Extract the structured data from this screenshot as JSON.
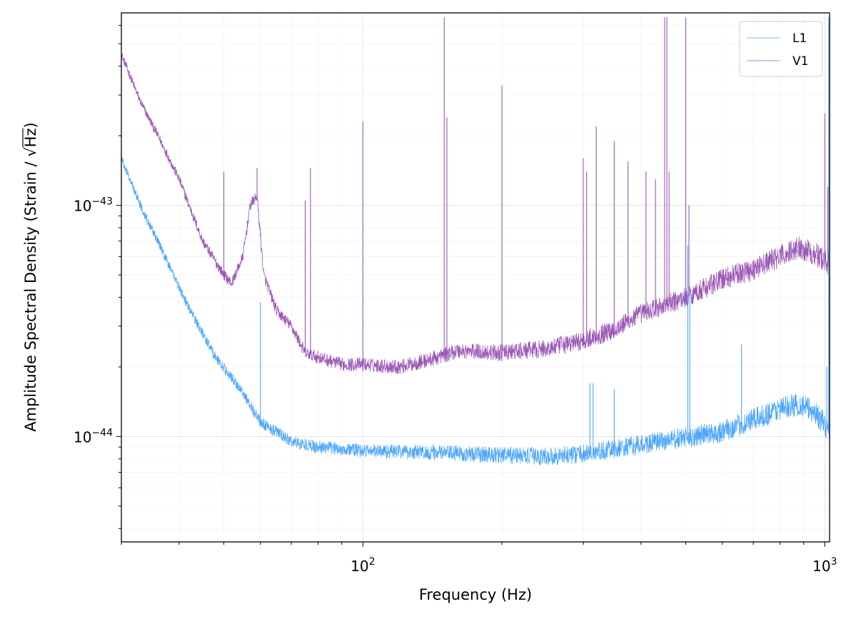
{
  "chart_data": {
    "type": "line",
    "title": "",
    "xlabel": "Frequency (Hz)",
    "ylabel_prefix": "Amplitude Spectral Density (Strain / ",
    "ylabel_radical": "Hz",
    "ylabel_suffix": ")",
    "xscale": "log",
    "yscale": "log",
    "xlim": [
      30,
      1024
    ],
    "ylim": [
      3.5e-45,
      6.8e-43
    ],
    "x_ticks": [
      {
        "value": 100,
        "base": "10",
        "exp": "2"
      },
      {
        "value": 1000,
        "base": "10",
        "exp": "3"
      }
    ],
    "y_ticks": [
      {
        "value": 1e-44,
        "base": "10",
        "exp": "−44"
      },
      {
        "value": 1e-43,
        "base": "10",
        "exp": "−43"
      }
    ],
    "grid": true,
    "legend_position": "top-right",
    "series": [
      {
        "name": "L1",
        "color": "#4da6ff",
        "baseline": [
          [
            30,
            1.6e-43
          ],
          [
            33,
            1e-43
          ],
          [
            37,
            6.2e-44
          ],
          [
            42,
            3.6e-44
          ],
          [
            48,
            2.2e-44
          ],
          [
            55,
            1.55e-44
          ],
          [
            60,
            1.15e-44
          ],
          [
            65,
            1.05e-44
          ],
          [
            70,
            9.5e-45
          ],
          [
            80,
            9e-45
          ],
          [
            100,
            8.7e-45
          ],
          [
            150,
            8.5e-45
          ],
          [
            200,
            8.3e-45
          ],
          [
            250,
            8.2e-45
          ],
          [
            300,
            8.4e-45
          ],
          [
            350,
            8.8e-45
          ],
          [
            400,
            9.2e-45
          ],
          [
            500,
            9.9e-45
          ],
          [
            600,
            1.05e-44
          ],
          [
            700,
            1.18e-44
          ],
          [
            800,
            1.32e-44
          ],
          [
            880,
            1.38e-44
          ],
          [
            950,
            1.28e-44
          ],
          [
            1000,
            1.12e-44
          ],
          [
            1024,
            1.05e-44
          ]
        ],
        "lines": [
          [
            60,
            3.8e-44
          ],
          [
            310,
            1.7e-44
          ],
          [
            315,
            1.7e-44
          ],
          [
            350,
            1.6e-44
          ],
          [
            505,
            6.7e-44
          ],
          [
            510,
            4.2e-44
          ],
          [
            660,
            2.5e-44
          ],
          [
            1010,
            2e-44
          ],
          [
            1020,
            6.5e-43
          ]
        ]
      },
      {
        "name": "V1",
        "color": "#9b59b6",
        "baseline": [
          [
            30,
            4.5e-43
          ],
          [
            33,
            2.8e-43
          ],
          [
            36,
            2e-43
          ],
          [
            40,
            1.3e-43
          ],
          [
            45,
            7e-44
          ],
          [
            50,
            5e-44
          ],
          [
            52,
            4.6e-44
          ],
          [
            55,
            6e-44
          ],
          [
            57,
            1e-43
          ],
          [
            59,
            1.1e-43
          ],
          [
            61,
            5e-44
          ],
          [
            65,
            3.5e-44
          ],
          [
            70,
            3e-44
          ],
          [
            75,
            2.3e-44
          ],
          [
            80,
            2.2e-44
          ],
          [
            90,
            2.05e-44
          ],
          [
            100,
            2.05e-44
          ],
          [
            120,
            2e-44
          ],
          [
            140,
            2.15e-44
          ],
          [
            160,
            2.35e-44
          ],
          [
            200,
            2.3e-44
          ],
          [
            250,
            2.4e-44
          ],
          [
            300,
            2.6e-44
          ],
          [
            350,
            2.9e-44
          ],
          [
            400,
            3.4e-44
          ],
          [
            450,
            3.7e-44
          ],
          [
            500,
            4e-44
          ],
          [
            550,
            4.4e-44
          ],
          [
            600,
            4.8e-44
          ],
          [
            700,
            5.3e-44
          ],
          [
            800,
            6e-44
          ],
          [
            880,
            6.6e-44
          ],
          [
            950,
            6.2e-44
          ],
          [
            1024,
            5.6e-44
          ]
        ],
        "lines": [
          [
            50,
            1.4e-43
          ],
          [
            59,
            1.45e-43
          ],
          [
            75,
            1.05e-43
          ],
          [
            77,
            1.45e-43
          ],
          [
            100,
            2.3e-43
          ],
          [
            150,
            6.5e-43
          ],
          [
            152,
            2.4e-43
          ],
          [
            200,
            3.3e-43
          ],
          [
            300,
            1.6e-43
          ],
          [
            305,
            1.4e-43
          ],
          [
            320,
            2.2e-43
          ],
          [
            350,
            1.9e-43
          ],
          [
            375,
            1.55e-43
          ],
          [
            410,
            1.4e-43
          ],
          [
            430,
            1.3e-43
          ],
          [
            450,
            6.5e-43
          ],
          [
            455,
            6.5e-43
          ],
          [
            460,
            1.4e-43
          ],
          [
            500,
            6.5e-43
          ],
          [
            508,
            1e-43
          ],
          [
            1000,
            2.5e-43
          ],
          [
            1015,
            1.2e-43
          ]
        ]
      }
    ]
  }
}
